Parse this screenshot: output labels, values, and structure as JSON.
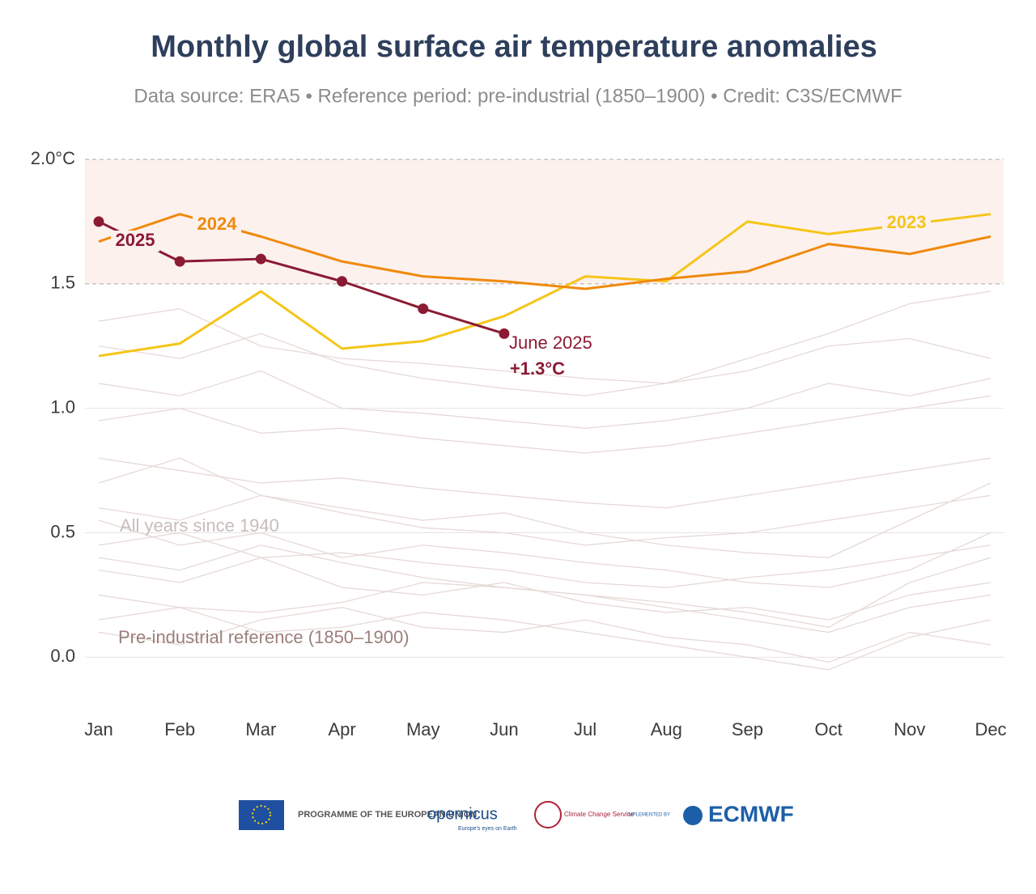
{
  "chart_data": {
    "type": "line",
    "title": "Monthly global surface air temperature anomalies",
    "subtitle": "Data source: ERA5 • Reference period: pre-industrial (1850–1900) • Credit: C3S/ECMWF",
    "categories": [
      "Jan",
      "Feb",
      "Mar",
      "Apr",
      "May",
      "Jun",
      "Jul",
      "Aug",
      "Sep",
      "Oct",
      "Nov",
      "Dec"
    ],
    "ylim": [
      -0.22,
      2.0
    ],
    "yticks": [
      {
        "value": 0,
        "label": "0.0"
      },
      0.5,
      {
        "value": 1,
        "label": "1.0"
      },
      1.5,
      {
        "value": 2,
        "label": "2.0°C"
      }
    ],
    "grid": true,
    "shade": [
      1.5,
      2.0
    ],
    "annotations": [
      "All years since 1940",
      "Pre-industrial reference (1850–1900)",
      "June 2025"
    ],
    "background_color": "#e6d9d6",
    "background_series": [
      [
        0.35,
        0.3,
        0.4,
        0.28,
        0.25,
        0.3,
        0.22,
        0.18,
        0.2,
        0.15,
        0.25,
        0.3
      ],
      [
        0.1,
        0.05,
        0.15,
        0.2,
        0.12,
        0.1,
        0.15,
        0.08,
        0.05,
        -0.02,
        0.1,
        0.05
      ],
      [
        0.45,
        0.5,
        0.4,
        0.42,
        0.38,
        0.35,
        0.3,
        0.28,
        0.32,
        0.35,
        0.4,
        0.45
      ],
      [
        0.25,
        0.2,
        0.18,
        0.22,
        0.3,
        0.28,
        0.25,
        0.2,
        0.15,
        0.1,
        0.2,
        0.25
      ],
      [
        0.6,
        0.55,
        0.65,
        0.58,
        0.52,
        0.5,
        0.45,
        0.48,
        0.5,
        0.55,
        0.6,
        0.65
      ],
      [
        0.8,
        0.75,
        0.7,
        0.72,
        0.68,
        0.65,
        0.62,
        0.6,
        0.65,
        0.7,
        0.75,
        0.8
      ],
      [
        0.95,
        1.0,
        0.9,
        0.92,
        0.88,
        0.85,
        0.82,
        0.85,
        0.9,
        0.95,
        1.0,
        1.05
      ],
      [
        1.1,
        1.05,
        1.15,
        1.0,
        0.98,
        0.95,
        0.92,
        0.95,
        1.0,
        1.1,
        1.05,
        1.12
      ],
      [
        1.25,
        1.2,
        1.3,
        1.18,
        1.12,
        1.08,
        1.05,
        1.1,
        1.15,
        1.25,
        1.28,
        1.2
      ],
      [
        0.4,
        0.35,
        0.45,
        0.38,
        0.32,
        0.28,
        0.25,
        0.22,
        0.18,
        0.12,
        0.3,
        0.4
      ],
      [
        0.7,
        0.8,
        0.65,
        0.6,
        0.55,
        0.58,
        0.5,
        0.45,
        0.42,
        0.4,
        0.55,
        0.7
      ],
      [
        0.15,
        0.2,
        0.1,
        0.12,
        0.18,
        0.15,
        0.1,
        0.05,
        0.0,
        -0.05,
        0.08,
        0.15
      ],
      [
        0.55,
        0.45,
        0.5,
        0.4,
        0.45,
        0.42,
        0.38,
        0.35,
        0.3,
        0.28,
        0.35,
        0.5
      ],
      [
        1.35,
        1.4,
        1.25,
        1.2,
        1.18,
        1.15,
        1.12,
        1.1,
        1.2,
        1.3,
        1.42,
        1.47
      ]
    ],
    "series": [
      {
        "name": "2023",
        "color": "#f5c518",
        "values": [
          1.21,
          1.26,
          1.47,
          1.24,
          1.27,
          1.37,
          1.53,
          1.51,
          1.75,
          1.7,
          1.74,
          1.78
        ]
      },
      {
        "name": "2024",
        "color": "#f08a0c",
        "values": [
          1.67,
          1.78,
          1.69,
          1.59,
          1.53,
          1.51,
          1.48,
          1.52,
          1.55,
          1.66,
          1.62,
          1.69
        ]
      },
      {
        "name": "2025",
        "color": "#8b1a33",
        "markers": true,
        "values": [
          1.75,
          1.59,
          1.6,
          1.51,
          1.4,
          1.3,
          null,
          null,
          null,
          null,
          null,
          null
        ],
        "value_labels": [
          null,
          null,
          null,
          null,
          null,
          "+1.3°C",
          null,
          null,
          null,
          null,
          null,
          null
        ]
      }
    ]
  },
  "footer": {
    "eu": "PROGRAMME OF THE EUROPEAN UNION",
    "copernicus": "opernicus",
    "copernicus_tag": "Europe's eyes on Earth",
    "c3s": "Climate Change Service",
    "implemented": "IMPLEMENTED BY",
    "ecmwf": "ECMWF"
  }
}
